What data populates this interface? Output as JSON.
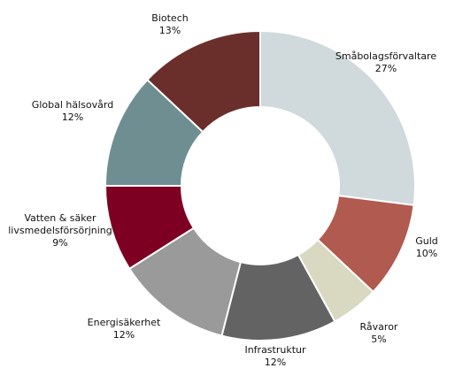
{
  "chart_data": {
    "type": "pie",
    "categories": [
      "Småbolagsförvaltare",
      "Guld",
      "Råvaror",
      "Infrastruktur",
      "Energisäkerhet",
      "Vatten & säker livsmedelsförsörjning",
      "Global hälsovård",
      "Biotech"
    ],
    "values": [
      27,
      10,
      5,
      12,
      12,
      9,
      12,
      13
    ],
    "value_labels": [
      "27%",
      "10%",
      "5%",
      "12%",
      "12%",
      "9%",
      "12%",
      "13%"
    ],
    "colors": [
      "#d0d9dc",
      "#b05a50",
      "#d9d8c0",
      "#636363",
      "#9a9a9a",
      "#7d0023",
      "#6e8e92",
      "#6b2f2b"
    ]
  }
}
